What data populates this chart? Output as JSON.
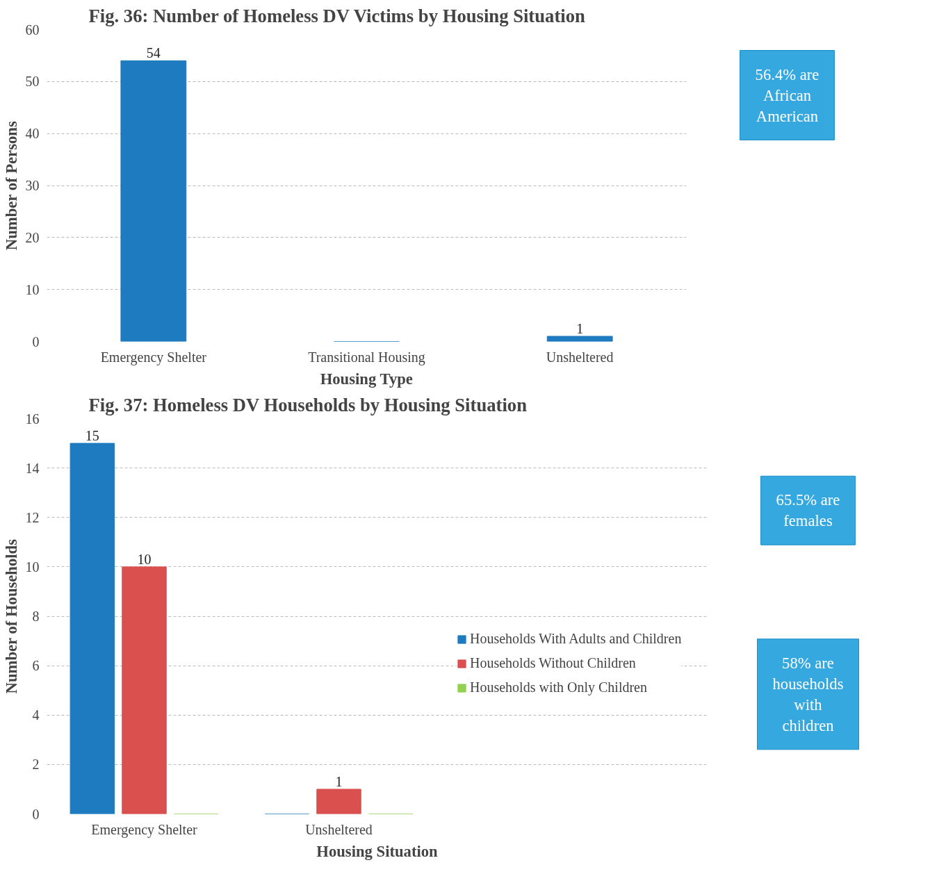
{
  "chart_data": [
    {
      "type": "bar",
      "title": "Fig. 36: Number of Homeless DV Victims by Housing Situation",
      "xlabel": "Housing Type",
      "ylabel": "Number of Persons",
      "categories": [
        "Emergency Shelter",
        "Transitional Housing",
        "Unsheltered"
      ],
      "series": [
        {
          "color": "#1f7bbf",
          "values": [
            54,
            0,
            1
          ],
          "value_labels": [
            "54",
            null,
            "1"
          ]
        }
      ],
      "ylim": [
        0,
        60
      ],
      "yticks": [
        0,
        10,
        20,
        30,
        40,
        50,
        60
      ],
      "grid": "y",
      "annotations": [
        "56.4% are African American"
      ]
    },
    {
      "type": "bar",
      "title": "Fig. 37: Homeless DV Households by Housing Situation",
      "xlabel": "Housing Situation",
      "ylabel": "Number of Households",
      "categories": [
        "Emergency Shelter",
        "Unsheltered"
      ],
      "series": [
        {
          "name": "Households With Adults and Children",
          "color": "#1f7bbf",
          "values": [
            15,
            0
          ],
          "value_labels": [
            "15",
            null
          ]
        },
        {
          "name": "Households Without Children",
          "color": "#d9504f",
          "values": [
            10,
            1
          ],
          "value_labels": [
            "10",
            "1"
          ]
        },
        {
          "name": "Households with Only Children",
          "color": "#92d050",
          "values": [
            0,
            0
          ],
          "value_labels": [
            null,
            null
          ]
        }
      ],
      "ylim": [
        0,
        16
      ],
      "yticks": [
        0,
        2,
        4,
        6,
        8,
        10,
        12,
        14,
        16
      ],
      "grid": "y",
      "legend": "right",
      "annotations": [
        "65.5% are females",
        "58% are households with children"
      ]
    }
  ]
}
